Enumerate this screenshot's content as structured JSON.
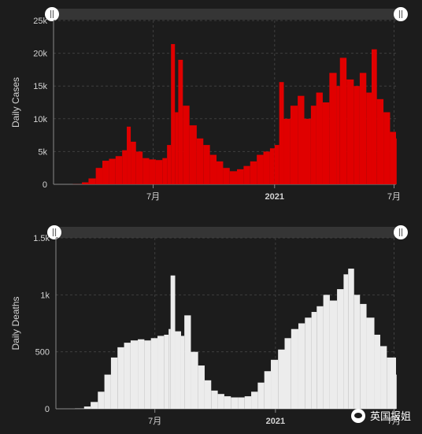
{
  "chart_data": [
    {
      "type": "bar",
      "ylabel": "Daily Cases",
      "ylim": [
        0,
        25000
      ],
      "yticks": [
        {
          "v": 0,
          "label": "0"
        },
        {
          "v": 5000,
          "label": "5k"
        },
        {
          "v": 10000,
          "label": "10k"
        },
        {
          "v": 15000,
          "label": "15k"
        },
        {
          "v": 20000,
          "label": "20k"
        },
        {
          "v": 25000,
          "label": "25k"
        }
      ],
      "xticks": [
        {
          "date": "2020-07-01",
          "label": "7月"
        },
        {
          "date": "2021-01-01",
          "label": "2021",
          "bold": true
        },
        {
          "date": "2021-07-01",
          "label": "7月"
        }
      ],
      "date_range": [
        "2020-02-01",
        "2021-07-04"
      ],
      "grid": true,
      "color": "#e00000",
      "points": [
        [
          "2020-02-01",
          0
        ],
        [
          "2020-03-01",
          20
        ],
        [
          "2020-03-15",
          300
        ],
        [
          "2020-03-25",
          900
        ],
        [
          "2020-04-05",
          2500
        ],
        [
          "2020-04-15",
          3600
        ],
        [
          "2020-04-25",
          3900
        ],
        [
          "2020-05-05",
          4300
        ],
        [
          "2020-05-15",
          5200
        ],
        [
          "2020-05-22",
          8800
        ],
        [
          "2020-05-28",
          6500
        ],
        [
          "2020-06-05",
          5000
        ],
        [
          "2020-06-15",
          4000
        ],
        [
          "2020-06-25",
          3800
        ],
        [
          "2020-07-05",
          3700
        ],
        [
          "2020-07-15",
          4000
        ],
        [
          "2020-07-22",
          6000
        ],
        [
          "2020-07-28",
          21400
        ],
        [
          "2020-08-03",
          11000
        ],
        [
          "2020-08-08",
          19000
        ],
        [
          "2020-08-15",
          12000
        ],
        [
          "2020-08-25",
          9000
        ],
        [
          "2020-09-05",
          7000
        ],
        [
          "2020-09-15",
          6000
        ],
        [
          "2020-09-25",
          4500
        ],
        [
          "2020-10-05",
          3500
        ],
        [
          "2020-10-15",
          2500
        ],
        [
          "2020-10-25",
          2000
        ],
        [
          "2020-11-05",
          2300
        ],
        [
          "2020-11-15",
          2800
        ],
        [
          "2020-11-25",
          3500
        ],
        [
          "2020-12-05",
          4500
        ],
        [
          "2020-12-15",
          5000
        ],
        [
          "2020-12-25",
          5500
        ],
        [
          "2021-01-01",
          6000
        ],
        [
          "2021-01-08",
          15600
        ],
        [
          "2021-01-15",
          10000
        ],
        [
          "2021-01-25",
          12000
        ],
        [
          "2021-02-05",
          13500
        ],
        [
          "2021-02-15",
          10000
        ],
        [
          "2021-02-25",
          12000
        ],
        [
          "2021-03-05",
          14000
        ],
        [
          "2021-03-15",
          12500
        ],
        [
          "2021-03-25",
          17000
        ],
        [
          "2021-04-05",
          15000
        ],
        [
          "2021-04-10",
          19300
        ],
        [
          "2021-04-20",
          16000
        ],
        [
          "2021-05-01",
          15000
        ],
        [
          "2021-05-10",
          17000
        ],
        [
          "2021-05-20",
          14000
        ],
        [
          "2021-05-28",
          20600
        ],
        [
          "2021-06-05",
          13000
        ],
        [
          "2021-06-15",
          11000
        ],
        [
          "2021-06-25",
          8000
        ],
        [
          "2021-07-04",
          7000
        ]
      ]
    },
    {
      "type": "bar",
      "ylabel": "Daily Deaths",
      "ylim": [
        0,
        1500
      ],
      "yticks": [
        {
          "v": 0,
          "label": "0"
        },
        {
          "v": 500,
          "label": "500"
        },
        {
          "v": 1000,
          "label": "1k"
        },
        {
          "v": 1500,
          "label": "1.5k"
        }
      ],
      "xticks": [
        {
          "date": "2020-07-01",
          "label": "7月"
        },
        {
          "date": "2021-01-01",
          "label": "2021",
          "bold": true
        },
        {
          "date": "2021-07-01",
          "label": "7月"
        }
      ],
      "date_range": [
        "2020-02-01",
        "2021-07-04"
      ],
      "grid": true,
      "color": "#ececec",
      "points": [
        [
          "2020-02-01",
          0
        ],
        [
          "2020-03-01",
          2
        ],
        [
          "2020-03-15",
          20
        ],
        [
          "2020-03-25",
          60
        ],
        [
          "2020-04-05",
          150
        ],
        [
          "2020-04-15",
          300
        ],
        [
          "2020-04-25",
          450
        ],
        [
          "2020-05-05",
          540
        ],
        [
          "2020-05-15",
          580
        ],
        [
          "2020-05-25",
          600
        ],
        [
          "2020-06-05",
          610
        ],
        [
          "2020-06-15",
          600
        ],
        [
          "2020-06-25",
          620
        ],
        [
          "2020-07-05",
          640
        ],
        [
          "2020-07-15",
          650
        ],
        [
          "2020-07-22",
          700
        ],
        [
          "2020-07-25",
          1170
        ],
        [
          "2020-08-01",
          680
        ],
        [
          "2020-08-10",
          640
        ],
        [
          "2020-08-15",
          820
        ],
        [
          "2020-08-25",
          500
        ],
        [
          "2020-09-05",
          380
        ],
        [
          "2020-09-15",
          250
        ],
        [
          "2020-09-25",
          160
        ],
        [
          "2020-10-05",
          130
        ],
        [
          "2020-10-15",
          110
        ],
        [
          "2020-10-25",
          100
        ],
        [
          "2020-11-05",
          100
        ],
        [
          "2020-11-15",
          110
        ],
        [
          "2020-11-25",
          150
        ],
        [
          "2020-12-05",
          230
        ],
        [
          "2020-12-15",
          330
        ],
        [
          "2020-12-25",
          430
        ],
        [
          "2021-01-05",
          520
        ],
        [
          "2021-01-15",
          620
        ],
        [
          "2021-01-25",
          700
        ],
        [
          "2021-02-05",
          750
        ],
        [
          "2021-02-15",
          800
        ],
        [
          "2021-02-25",
          850
        ],
        [
          "2021-03-05",
          900
        ],
        [
          "2021-03-15",
          1000
        ],
        [
          "2021-03-25",
          950
        ],
        [
          "2021-04-05",
          1050
        ],
        [
          "2021-04-15",
          1180
        ],
        [
          "2021-04-22",
          1230
        ],
        [
          "2021-05-01",
          1000
        ],
        [
          "2021-05-10",
          920
        ],
        [
          "2021-05-20",
          800
        ],
        [
          "2021-06-01",
          650
        ],
        [
          "2021-06-10",
          550
        ],
        [
          "2021-06-20",
          450
        ],
        [
          "2021-07-04",
          300
        ]
      ]
    }
  ],
  "watermark": {
    "text": "英国报姐",
    "icon": "wechat-icon"
  }
}
